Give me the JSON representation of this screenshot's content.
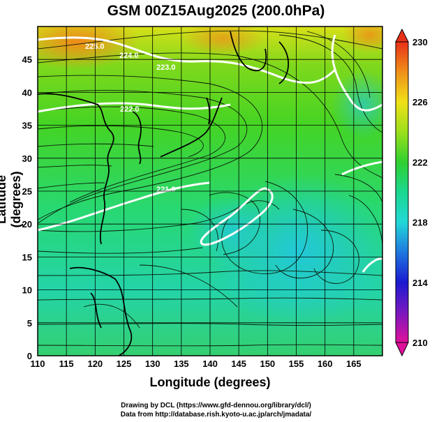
{
  "title": "GSM 00Z15Aug2025 (200.0hPa)",
  "xlabel": "Longitude (degrees)",
  "ylabel": "Latitude  (degrees)",
  "credit_line1": "Drawing by DCL (https://www.gfd-dennou.org/library/dcl/)",
  "credit_line2": "Data from http://database.rish.kyoto-u.ac.jp/arch/jmadata/",
  "chart_data": {
    "type": "heatmap",
    "x_ticks": [
      110,
      115,
      120,
      125,
      130,
      135,
      140,
      145,
      150,
      155,
      160,
      165
    ],
    "y_ticks": [
      0,
      5,
      10,
      15,
      20,
      25,
      30,
      35,
      40,
      45
    ],
    "xlim": [
      110,
      170
    ],
    "ylim": [
      0,
      50
    ],
    "colorbar": {
      "ticks": [
        210,
        214,
        218,
        222,
        226,
        230
      ],
      "range": [
        210,
        230
      ],
      "colors": [
        "#e0109a",
        "#7a18c0",
        "#1a1ad0",
        "#1e78e0",
        "#22d8d8",
        "#1ad890",
        "#30d030",
        "#9ae01a",
        "#f0e018",
        "#f09018",
        "#e83018"
      ]
    },
    "contour_labels": [
      "225.0",
      "224.0",
      "223.0",
      "222.0",
      "221.0"
    ],
    "grid": true,
    "field": "temperature (K) with wind streamlines"
  }
}
